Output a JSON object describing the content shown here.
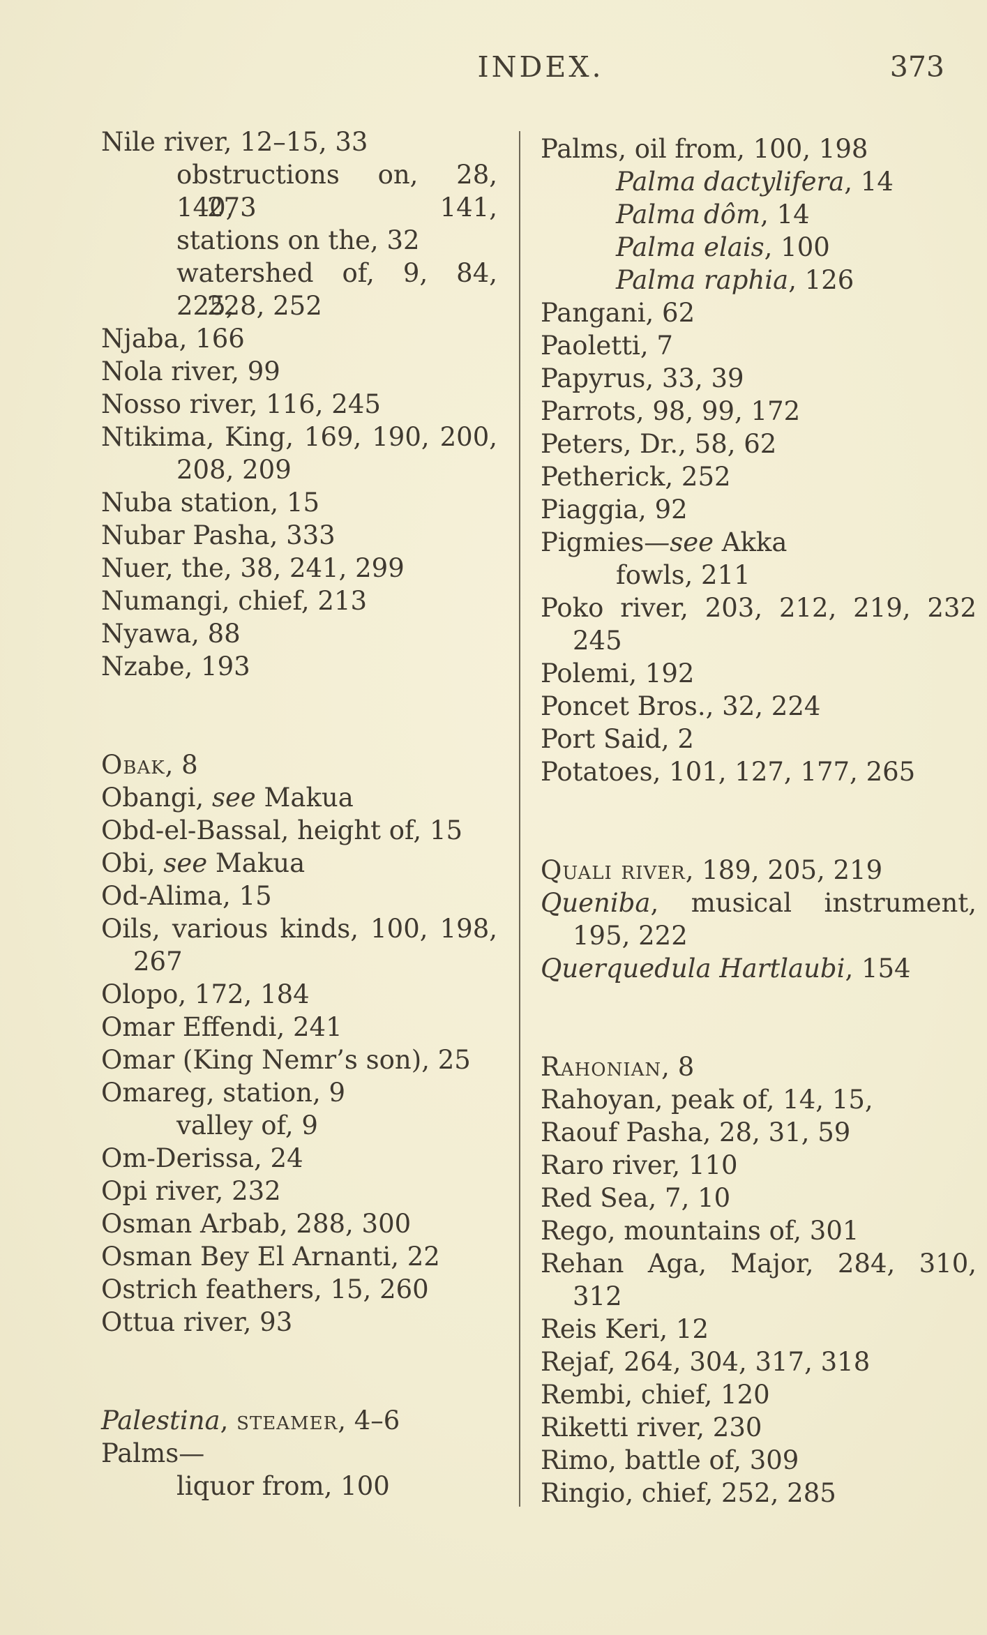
{
  "page": {
    "header_title": "INDEX.",
    "page_number": "373"
  },
  "colors": {
    "paper": "#f2edd2",
    "ink": "#3f3930",
    "divider_rule": "#534d3f"
  },
  "columns": {
    "left": [
      {
        "ind": 0,
        "seg": [
          {
            "t": "Nile river, 12–15, 33"
          }
        ]
      },
      {
        "ind": 2,
        "j": true,
        "seg": [
          {
            "t": "obstructions on, 28, 140, 141,"
          }
        ]
      },
      {
        "ind": 3,
        "seg": [
          {
            "t": "273"
          }
        ]
      },
      {
        "ind": 2,
        "seg": [
          {
            "t": "stations on the, 32"
          }
        ]
      },
      {
        "ind": 2,
        "j": true,
        "seg": [
          {
            "t": "watershed of, 9, 84, 225,"
          }
        ]
      },
      {
        "ind": 3,
        "seg": [
          {
            "t": "228, 252"
          }
        ]
      },
      {
        "ind": 0,
        "seg": [
          {
            "t": "Njaba, 166"
          }
        ]
      },
      {
        "ind": 0,
        "seg": [
          {
            "t": "Nola river, 99"
          }
        ]
      },
      {
        "ind": 0,
        "seg": [
          {
            "t": "Nosso river, 116, 245"
          }
        ]
      },
      {
        "ind": 0,
        "j": true,
        "seg": [
          {
            "t": "Ntikima, King, 169, 190, 200,"
          }
        ]
      },
      {
        "ind": 2,
        "seg": [
          {
            "t": "208, 209"
          }
        ]
      },
      {
        "ind": 0,
        "seg": [
          {
            "t": "Nuba station, 15"
          }
        ]
      },
      {
        "ind": 0,
        "seg": [
          {
            "t": "Nubar Pasha, 333"
          }
        ]
      },
      {
        "ind": 0,
        "seg": [
          {
            "t": "Nuer, the, 38, 241, 299"
          }
        ]
      },
      {
        "ind": 0,
        "seg": [
          {
            "t": "Numangi, chief, 213"
          }
        ]
      },
      {
        "ind": 0,
        "seg": [
          {
            "t": "Nyawa, 88"
          }
        ]
      },
      {
        "ind": 0,
        "seg": [
          {
            "t": "Nzabe, 193"
          }
        ]
      },
      {
        "blank": true
      },
      {
        "blank": true
      },
      {
        "ind": 0,
        "seg": [
          {
            "t": "Obak",
            "s": "sc"
          },
          {
            "t": ", 8"
          }
        ]
      },
      {
        "ind": 0,
        "seg": [
          {
            "t": "Obangi, "
          },
          {
            "t": "see",
            "s": "i"
          },
          {
            "t": " Makua"
          }
        ]
      },
      {
        "ind": 0,
        "seg": [
          {
            "t": "Obd-el-Bassal, height of, 15"
          }
        ]
      },
      {
        "ind": 0,
        "seg": [
          {
            "t": "Obi, "
          },
          {
            "t": "see",
            "s": "i"
          },
          {
            "t": " Makua"
          }
        ]
      },
      {
        "ind": 0,
        "seg": [
          {
            "t": "Od-Alima, 15"
          }
        ]
      },
      {
        "ind": 0,
        "j": true,
        "seg": [
          {
            "t": "Oils, various kinds, 100, 198,"
          }
        ]
      },
      {
        "ind": 1,
        "seg": [
          {
            "t": "267"
          }
        ]
      },
      {
        "ind": 0,
        "seg": [
          {
            "t": "Olopo, 172, 184"
          }
        ]
      },
      {
        "ind": 0,
        "seg": [
          {
            "t": "Omar Effendi, 241"
          }
        ]
      },
      {
        "ind": 0,
        "seg": [
          {
            "t": "Omar (King Nemr’s son), 25"
          }
        ]
      },
      {
        "ind": 0,
        "seg": [
          {
            "t": "Omareg, station, 9"
          }
        ]
      },
      {
        "ind": 2,
        "seg": [
          {
            "t": "valley of, 9"
          }
        ]
      },
      {
        "ind": 0,
        "seg": [
          {
            "t": "Om-Derissa, 24"
          }
        ]
      },
      {
        "ind": 0,
        "seg": [
          {
            "t": "Opi river, 232"
          }
        ]
      },
      {
        "ind": 0,
        "seg": [
          {
            "t": "Osman Arbab, 288, 300"
          }
        ]
      },
      {
        "ind": 0,
        "seg": [
          {
            "t": "Osman Bey El Arnanti, 22"
          }
        ]
      },
      {
        "ind": 0,
        "seg": [
          {
            "t": "Ostrich feathers, 15, 260"
          }
        ]
      },
      {
        "ind": 0,
        "seg": [
          {
            "t": "Ottua river, 93"
          }
        ]
      },
      {
        "blank": true
      },
      {
        "blank": true
      },
      {
        "ind": 0,
        "seg": [
          {
            "t": "Palestina",
            "s": "i"
          },
          {
            "t": ", "
          },
          {
            "t": "steamer",
            "s": "sc"
          },
          {
            "t": ", 4–6"
          }
        ]
      },
      {
        "ind": 0,
        "seg": [
          {
            "t": "Palms—"
          }
        ]
      },
      {
        "ind": 2,
        "seg": [
          {
            "t": "liquor from, 100"
          }
        ]
      }
    ],
    "right": [
      {
        "ind": 0,
        "seg": [
          {
            "t": "Palms, oil from, 100, 198"
          }
        ]
      },
      {
        "ind": 2,
        "seg": [
          {
            "t": "Palma dactylifera",
            "s": "i"
          },
          {
            "t": ", 14"
          }
        ]
      },
      {
        "ind": 2,
        "seg": [
          {
            "t": "Palma dôm",
            "s": "i"
          },
          {
            "t": ", 14"
          }
        ]
      },
      {
        "ind": 2,
        "seg": [
          {
            "t": "Palma elais",
            "s": "i"
          },
          {
            "t": ", 100"
          }
        ]
      },
      {
        "ind": 2,
        "seg": [
          {
            "t": "Palma raphia",
            "s": "i"
          },
          {
            "t": ", 126"
          }
        ]
      },
      {
        "ind": 0,
        "seg": [
          {
            "t": "Pangani, 62"
          }
        ]
      },
      {
        "ind": 0,
        "seg": [
          {
            "t": "Paoletti, 7"
          }
        ]
      },
      {
        "ind": 0,
        "seg": [
          {
            "t": "Papyrus, 33, 39"
          }
        ]
      },
      {
        "ind": 0,
        "seg": [
          {
            "t": "Parrots, 98, 99, 172"
          }
        ]
      },
      {
        "ind": 0,
        "seg": [
          {
            "t": "Peters, Dr., 58, 62"
          }
        ]
      },
      {
        "ind": 0,
        "seg": [
          {
            "t": "Petherick, 252"
          }
        ]
      },
      {
        "ind": 0,
        "seg": [
          {
            "t": "Piaggia, 92"
          }
        ]
      },
      {
        "ind": 0,
        "seg": [
          {
            "t": "Pigmies—"
          },
          {
            "t": "see",
            "s": "i"
          },
          {
            "t": " Akka"
          }
        ]
      },
      {
        "ind": 2,
        "seg": [
          {
            "t": "fowls, 211"
          }
        ]
      },
      {
        "ind": 0,
        "j": true,
        "seg": [
          {
            "t": "Poko river, 203, 212, 219, 232"
          }
        ]
      },
      {
        "ind": 1,
        "seg": [
          {
            "t": "245"
          }
        ]
      },
      {
        "ind": 0,
        "seg": [
          {
            "t": "Polemi, 192"
          }
        ]
      },
      {
        "ind": 0,
        "seg": [
          {
            "t": "Poncet Bros., 32, 224"
          }
        ]
      },
      {
        "ind": 0,
        "seg": [
          {
            "t": "Port Said, 2"
          }
        ]
      },
      {
        "ind": 0,
        "seg": [
          {
            "t": "Potatoes, 101, 127, 177, 265"
          }
        ]
      },
      {
        "blank": true
      },
      {
        "blank": true
      },
      {
        "ind": 0,
        "seg": [
          {
            "t": "Quali river",
            "s": "sc"
          },
          {
            "t": ", 189, 205, 219"
          }
        ]
      },
      {
        "ind": 0,
        "j": true,
        "seg": [
          {
            "t": "Queniba",
            "s": "i"
          },
          {
            "t": ", musical instrument,"
          }
        ]
      },
      {
        "ind": 1,
        "seg": [
          {
            "t": "195, 222"
          }
        ]
      },
      {
        "ind": 0,
        "seg": [
          {
            "t": "Querquedula Hartlaubi",
            "s": "i"
          },
          {
            "t": ", 154"
          }
        ]
      },
      {
        "blank": true
      },
      {
        "blank": true
      },
      {
        "ind": 0,
        "seg": [
          {
            "t": "Rahonian",
            "s": "sc"
          },
          {
            "t": ", 8"
          }
        ]
      },
      {
        "ind": 0,
        "seg": [
          {
            "t": "Rahoyan, peak of, 14, 15,"
          }
        ]
      },
      {
        "ind": 0,
        "seg": [
          {
            "t": "Raouf Pasha, 28, 31, 59"
          }
        ]
      },
      {
        "ind": 0,
        "seg": [
          {
            "t": "Raro river, 110"
          }
        ]
      },
      {
        "ind": 0,
        "seg": [
          {
            "t": "Red Sea, 7, 10"
          }
        ]
      },
      {
        "ind": 0,
        "seg": [
          {
            "t": "Rego, mountains of, 301"
          }
        ]
      },
      {
        "ind": 0,
        "j": true,
        "seg": [
          {
            "t": "Rehan Aga, Major, 284, 310,"
          }
        ]
      },
      {
        "ind": 1,
        "seg": [
          {
            "t": "312"
          }
        ]
      },
      {
        "ind": 0,
        "seg": [
          {
            "t": "Reis Keri, 12"
          }
        ]
      },
      {
        "ind": 0,
        "seg": [
          {
            "t": "Rejaf, 264, 304, 317, 318"
          }
        ]
      },
      {
        "ind": 0,
        "seg": [
          {
            "t": "Rembi, chief, 120"
          }
        ]
      },
      {
        "ind": 0,
        "seg": [
          {
            "t": "Riketti river, 230"
          }
        ]
      },
      {
        "ind": 0,
        "seg": [
          {
            "t": "Rimo, battle of, 309"
          }
        ]
      },
      {
        "ind": 0,
        "seg": [
          {
            "t": "Ringio, chief, 252, 285"
          }
        ]
      }
    ]
  }
}
